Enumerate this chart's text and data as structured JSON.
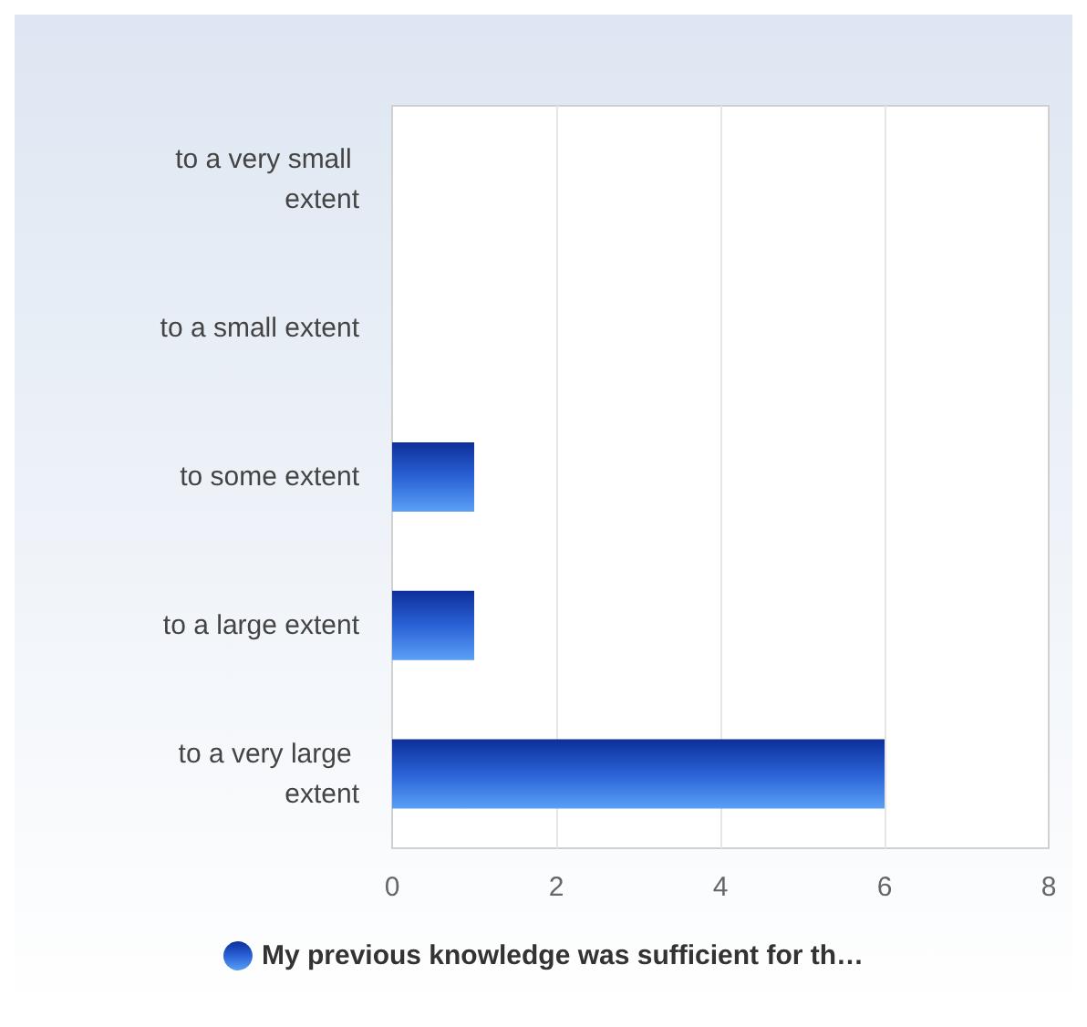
{
  "chart_data": {
    "type": "bar",
    "orientation": "horizontal",
    "categories": [
      "to a very small extent",
      "to a small extent",
      "to some extent",
      "to a large extent",
      "to a very large extent"
    ],
    "series": [
      {
        "name": "My previous knowledge was sufficient for th…",
        "color": "#2a62d6",
        "values": [
          0,
          0,
          1,
          1,
          6
        ]
      }
    ],
    "xlim": [
      0,
      8
    ],
    "xticks": [
      0,
      2,
      4,
      6,
      8
    ],
    "grid": "x",
    "legend": "bottom"
  }
}
